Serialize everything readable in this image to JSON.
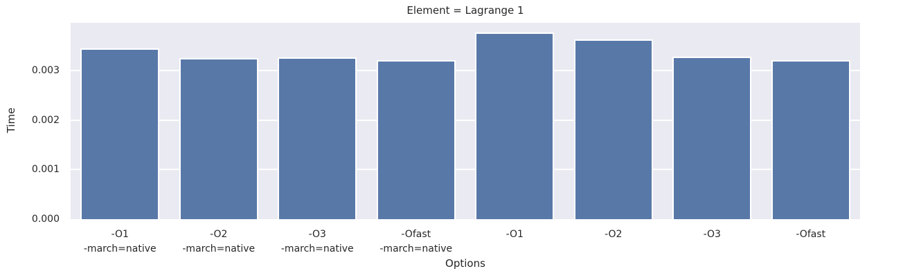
{
  "chart": {
    "title": "Element = Lagrange 1",
    "xlabel": "Options",
    "ylabel": "Time"
  },
  "chart_data": {
    "type": "bar",
    "title": "Element = Lagrange 1",
    "xlabel": "Options",
    "ylabel": "Time",
    "categories": [
      "-O1\n-march=native",
      "-O2\n-march=native",
      "-O3\n-march=native",
      "-Ofast\n-march=native",
      "-O1",
      "-O2",
      "-O3",
      "-Ofast"
    ],
    "values": [
      0.00345,
      0.00326,
      0.00327,
      0.00321,
      0.00378,
      0.00363,
      0.00328,
      0.00321
    ],
    "ylim": [
      0,
      0.00397
    ],
    "yticks": [
      0,
      0.001,
      0.002,
      0.003
    ],
    "ytick_labels": [
      "0.000",
      "0.001",
      "0.002",
      "0.003"
    ],
    "grid": "horizontal",
    "legend": false,
    "colors": {
      "bar_fill": "#5878A8",
      "bar_edge": "#FFFFFF",
      "axes_background": "#EAEAF2",
      "grid_color": "#FFFFFF",
      "text_color": "#262626",
      "figure_background": "#FFFFFF"
    }
  }
}
